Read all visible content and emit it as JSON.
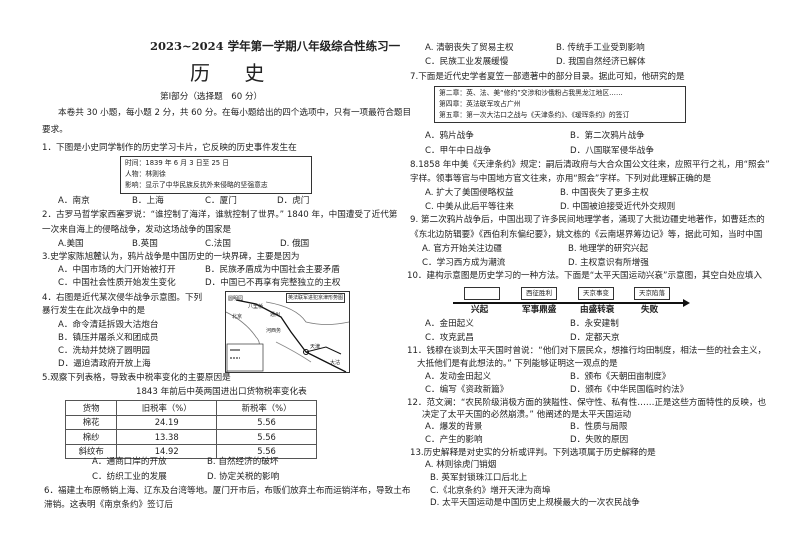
{
  "header": {
    "exam_title": "2023~2024 学年第一学期八年级综合性练习一",
    "subject": "历 史",
    "part": "第Ⅰ部分（选择题　60 分）",
    "instructions": [
      "本卷共 30 小题，每小题 2 分，共 60 分。在每小题给出的四个选项中，只有一项最符合题目",
      "要求。"
    ]
  },
  "q1": {
    "stem": "1．下图是小史同学制作的历史学习卡片，它反映的历史事件发生在",
    "card": [
      "时间：1839 年 6 月 3 日至 25 日",
      "人物：林则徐",
      "影响：显示了中华民族反抗外来侵略的坚强意志"
    ],
    "options": [
      "A．南京",
      "B．上海",
      "C．厦门",
      "D．虎门"
    ]
  },
  "q2": {
    "stem": [
      "2．古罗马哲学家西塞罗说：“谁控制了海洋，谁就控制了世界。” 1840 年，中国遭受了近代第",
      "一次来自海上的侵略战争，发动这场战争的国家是"
    ],
    "options": [
      "A.美国",
      "B.英国",
      "C.法国",
      "D. 俄国"
    ]
  },
  "q3": {
    "stem": "3.史学家陈旭麓认为，鸦片战争是中国历史的一块界碑，主要是因为",
    "options": [
      "A．中国市场的大门开始被打开",
      "B．民族矛盾成为中国社会主要矛盾",
      "C．中国社会性质开始发生变化",
      "D．中国已不再享有完整独立的主权"
    ]
  },
  "q4": {
    "stem": [
      "4．右图是近代某次侵华战争示意图。下列",
      "暴行发生在此次战争中的是"
    ],
    "options": [
      "A．命令清廷拆毁大沽炮台",
      "B．镇压并屠杀义和团成员",
      "C．洗劫并焚烧了圆明园",
      "D．逼迫清政府开放上海"
    ],
    "map_title": "英法联军进犯京津形势图",
    "map_labels": [
      "圆明园",
      "八里桥",
      "通州",
      "北京",
      "河西务",
      "天津",
      "大沽"
    ]
  },
  "q5": {
    "stem": "5.观察下列表格，导致表中税率变化的主要原因是",
    "table_title": "1843 年前后中英两国进出口货物税率变化表",
    "headers": [
      "货物",
      "旧税率（%）",
      "新税率（%）"
    ],
    "rows": [
      [
        "棉花",
        "24.19",
        "5.56"
      ],
      [
        "棉纱",
        "13.38",
        "5.56"
      ],
      [
        "斜纹布",
        "14.92",
        "5.56"
      ]
    ],
    "options": [
      "A．通商口岸的开放",
      "B. 自然经济的破坏",
      "C．纺织工业的发展",
      "D. 协定关税的影响"
    ]
  },
  "q6": {
    "stem": [
      "6．福建土布原畅销上海、辽东及台湾等地。厦门开市后，布贩们放弃土布而运销洋布，导致土布",
      "滞销。这表明《南京条约》签订后"
    ],
    "options": [
      "A. 清朝丧失了贸易主权",
      "B. 传统手工业受到影响",
      "C．民族工业发展缓慢",
      "D. 我国自然经济已解体"
    ]
  },
  "q7": {
    "stem": "7.下面是近代史学者夏笠一部遗著中的部分目录。据此可知，他研究的是",
    "box": [
      "第二章：英、法、美“修约”交涉和沙俄粉占我黑龙江地区……",
      "第四章：英法联军攻占广州",
      "第五章：第一次大沽口之战与《天津条约》、《瑷珲条约》的签订"
    ],
    "options": [
      "A．鸦片战争",
      "B．第二次鸦片战争",
      "C．甲午中日战争",
      "D．八国联军侵华战争"
    ]
  },
  "q8": {
    "stem": [
      "8.1858 年中美《天津条约》规定：嗣后清政府与大合众国公文往来，应照平行之礼，用“照会”",
      "字样。领事等官与中国地方官文往来，亦用“照会”字样。下列对此理解正确的是"
    ],
    "options": [
      "A. 扩大了美国侵略权益",
      "B. 中国丧失了更多主权",
      "C. 中美从此后平等往来",
      "D. 中国被迫接受近代外交规则"
    ]
  },
  "q9": {
    "stem": [
      "9. 第二次鸦片战争后，中国出现了许多民间地理学者，涌现了大批边疆史地著作，如曹廷杰的",
      "《东北边防辑要》《西伯利东偏纪要》，姚文栋的《云南堪界筹边记》等，据此可知，当时中国"
    ],
    "options": [
      "A. 官方开始关注边疆",
      "B. 地理学的研究兴起",
      "C．学习西方成为潮流",
      "D. 主权意识有所增强"
    ]
  },
  "q10": {
    "stem": "10．建构示意图是历史学习的一种方法。下面是“太平天国运动兴衰”示意图，其空白处应填入",
    "boxes": [
      "",
      "西征胜利",
      "天京事变",
      "天京陷落"
    ],
    "stages": [
      "兴起",
      "军事鼎盛",
      "由盛转衰",
      "失败"
    ],
    "options": [
      "A．金田起义",
      "B．永安建制",
      "C．攻克武昌",
      "D．定都天京"
    ]
  },
  "q11": {
    "stem": [
      "11．钱穆在谈到太平天国时曾说：“他们对下层民众，想推行均田制度，相法一些的社会主义，",
      "大抵他们是有此想法的。” 下列能够证明这一观点的是"
    ],
    "options": [
      "A．发动金田起义",
      "B．颁布《天朝田亩制度》",
      "C．编写《资政新篇》",
      "D．颁布《中华民国临时约法》"
    ]
  },
  "q12": {
    "stem": [
      "12．范文澜：“农民阶级消极方面的狭隘性、保守性、私有性……正是这些方面特性的反映，也",
      "决定了太平天国的必然崩溃。” 他阐述的是太平天国运动"
    ],
    "options": [
      "A．爆发的背景",
      "B．性质与局限",
      "C．产生的影响",
      "D．失败的原因"
    ]
  },
  "q13": {
    "stem": "13.历史解释是对史实的分析或评判。下列选项属于历史解释的是",
    "options": [
      "A. 林则徐虎门销烟",
      "B. 英军封锁珠江口后北上",
      "C.《北京条约》增开天津为商埠",
      "D. 太平天国运动是中国历史上规模最大的一次农民战争"
    ]
  }
}
